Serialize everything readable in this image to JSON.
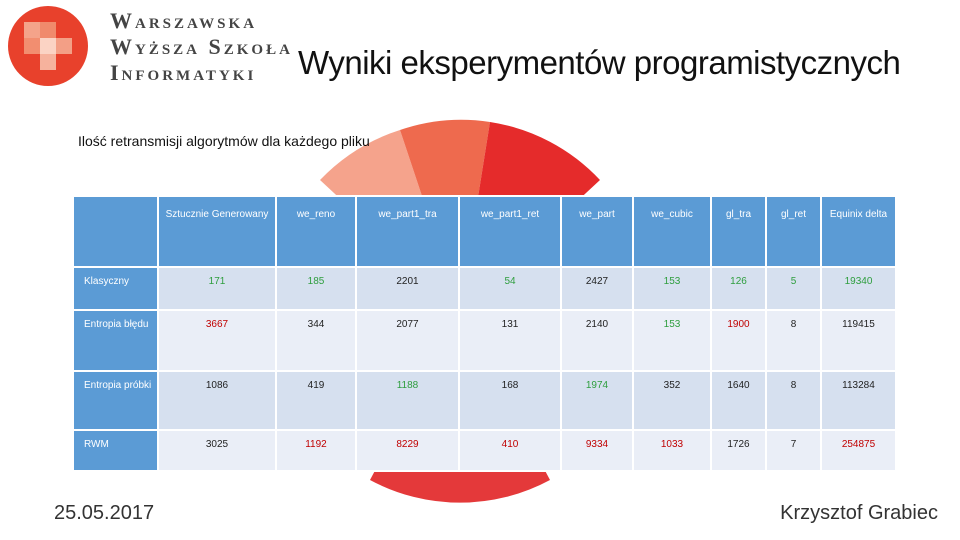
{
  "header": {
    "logo": [
      "Warszawska",
      "Wyższa Szkoła",
      "Informatyki"
    ],
    "title": "Wyniki eksperymentów programistycznych"
  },
  "subtitle": "Ilość retransmisji algorytmów dla każdego pliku",
  "table": {
    "columns": [
      "Sztucznie Generowany",
      "we_reno",
      "we_part1_tra",
      "we_part1_ret",
      "we_part",
      "we_cubic",
      "gl_tra",
      "gl_ret",
      "Equinix delta"
    ],
    "rows": [
      {
        "label": "Klasyczny",
        "cells": [
          171,
          185,
          2201,
          54,
          2427,
          153,
          126,
          5,
          19340
        ],
        "colors": [
          "#2e9e3e",
          "#2e9e3e",
          "#222222",
          "#2e9e3e",
          "#222222",
          "#2e9e3e",
          "#2e9e3e",
          "#2e9e3e",
          "#2e9e3e"
        ]
      },
      {
        "label": "Entropia błędu",
        "cells": [
          3667,
          344,
          2077,
          131,
          2140,
          153,
          1900,
          8,
          119415
        ],
        "colors": [
          "#c00000",
          "#222222",
          "#222222",
          "#222222",
          "#222222",
          "#2e9e3e",
          "#c00000",
          "#222222",
          "#222222"
        ]
      },
      {
        "label": "Entropia próbki",
        "cells": [
          1086,
          419,
          1188,
          168,
          1974,
          352,
          1640,
          8,
          113284
        ],
        "colors": [
          "#222222",
          "#222222",
          "#2e9e3e",
          "#222222",
          "#2e9e3e",
          "#222222",
          "#222222",
          "#222222",
          "#222222"
        ]
      },
      {
        "label": "RWM",
        "cells": [
          3025,
          1192,
          8229,
          410,
          9334,
          1033,
          1726,
          7,
          254875
        ],
        "colors": [
          "#222222",
          "#c00000",
          "#c00000",
          "#c00000",
          "#c00000",
          "#c00000",
          "#222222",
          "#222222",
          "#c00000"
        ]
      }
    ]
  },
  "footer": {
    "date": "25.05.2017",
    "author": "Krzysztof Grabiec"
  }
}
